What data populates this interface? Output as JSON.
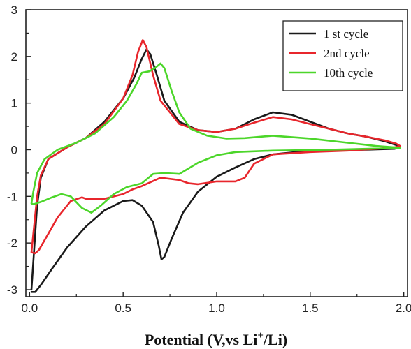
{
  "chart_data": {
    "type": "line",
    "title": "",
    "xlabel": "Potential (V,vs Li",
    "xlabel_sup": "+",
    "xlabel_tail": "/Li)",
    "ylabel": "",
    "xlim": [
      -0.02,
      2.02
    ],
    "ylim": [
      -3.15,
      3.0
    ],
    "x_ticks": [
      0.0,
      0.5,
      1.0,
      1.5,
      2.0
    ],
    "x_tick_labels": [
      "0.0",
      "0.5",
      "1.0",
      "1.5",
      "2.0"
    ],
    "y_ticks": [
      -3,
      -2,
      -1,
      0,
      1,
      2,
      3
    ],
    "y_tick_labels": [
      "-3",
      "-2",
      "-1",
      "0",
      "1",
      "2",
      "3"
    ],
    "grid": false,
    "legend_position": "top-right",
    "series": [
      {
        "name": "1 st cycle",
        "color": "#1a1a1a",
        "points": [
          [
            0.01,
            -3.0
          ],
          [
            0.02,
            -2.4
          ],
          [
            0.04,
            -1.2
          ],
          [
            0.06,
            -0.6
          ],
          [
            0.1,
            -0.2
          ],
          [
            0.2,
            0.05
          ],
          [
            0.3,
            0.25
          ],
          [
            0.4,
            0.6
          ],
          [
            0.5,
            1.1
          ],
          [
            0.56,
            1.55
          ],
          [
            0.6,
            1.95
          ],
          [
            0.625,
            2.15
          ],
          [
            0.645,
            2.05
          ],
          [
            0.68,
            1.6
          ],
          [
            0.72,
            1.05
          ],
          [
            0.8,
            0.6
          ],
          [
            0.9,
            0.42
          ],
          [
            1.0,
            0.38
          ],
          [
            1.1,
            0.45
          ],
          [
            1.2,
            0.65
          ],
          [
            1.3,
            0.8
          ],
          [
            1.4,
            0.75
          ],
          [
            1.5,
            0.6
          ],
          [
            1.6,
            0.45
          ],
          [
            1.7,
            0.35
          ],
          [
            1.8,
            0.28
          ],
          [
            1.9,
            0.18
          ],
          [
            1.96,
            0.1
          ],
          [
            1.98,
            0.05
          ],
          [
            1.95,
            0.02
          ],
          [
            1.8,
            0.0
          ],
          [
            1.5,
            -0.02
          ],
          [
            1.3,
            -0.1
          ],
          [
            1.2,
            -0.2
          ],
          [
            1.1,
            -0.38
          ],
          [
            1.0,
            -0.58
          ],
          [
            0.9,
            -0.9
          ],
          [
            0.82,
            -1.35
          ],
          [
            0.76,
            -1.9
          ],
          [
            0.72,
            -2.3
          ],
          [
            0.705,
            -2.35
          ],
          [
            0.69,
            -2.05
          ],
          [
            0.66,
            -1.55
          ],
          [
            0.6,
            -1.2
          ],
          [
            0.55,
            -1.08
          ],
          [
            0.5,
            -1.1
          ],
          [
            0.4,
            -1.3
          ],
          [
            0.3,
            -1.65
          ],
          [
            0.2,
            -2.1
          ],
          [
            0.12,
            -2.55
          ],
          [
            0.06,
            -2.9
          ],
          [
            0.03,
            -3.05
          ],
          [
            0.01,
            -3.05
          ]
        ]
      },
      {
        "name": "2nd cycle",
        "color": "#e8262c",
        "points": [
          [
            0.01,
            -2.2
          ],
          [
            0.02,
            -1.8
          ],
          [
            0.04,
            -1.0
          ],
          [
            0.06,
            -0.55
          ],
          [
            0.1,
            -0.2
          ],
          [
            0.2,
            0.05
          ],
          [
            0.3,
            0.25
          ],
          [
            0.4,
            0.55
          ],
          [
            0.5,
            1.1
          ],
          [
            0.55,
            1.6
          ],
          [
            0.58,
            2.1
          ],
          [
            0.605,
            2.35
          ],
          [
            0.625,
            2.2
          ],
          [
            0.66,
            1.6
          ],
          [
            0.7,
            1.05
          ],
          [
            0.8,
            0.55
          ],
          [
            0.9,
            0.42
          ],
          [
            1.0,
            0.38
          ],
          [
            1.1,
            0.45
          ],
          [
            1.2,
            0.58
          ],
          [
            1.3,
            0.7
          ],
          [
            1.4,
            0.65
          ],
          [
            1.5,
            0.55
          ],
          [
            1.6,
            0.45
          ],
          [
            1.7,
            0.35
          ],
          [
            1.8,
            0.28
          ],
          [
            1.9,
            0.2
          ],
          [
            1.96,
            0.13
          ],
          [
            1.98,
            0.08
          ],
          [
            1.95,
            0.05
          ],
          [
            1.85,
            0.02
          ],
          [
            1.7,
            -0.02
          ],
          [
            1.5,
            -0.05
          ],
          [
            1.3,
            -0.1
          ],
          [
            1.2,
            -0.3
          ],
          [
            1.15,
            -0.6
          ],
          [
            1.1,
            -0.68
          ],
          [
            1.0,
            -0.68
          ],
          [
            0.9,
            -0.74
          ],
          [
            0.85,
            -0.72
          ],
          [
            0.8,
            -0.65
          ],
          [
            0.7,
            -0.6
          ],
          [
            0.6,
            -0.78
          ],
          [
            0.55,
            -0.85
          ],
          [
            0.5,
            -0.95
          ],
          [
            0.4,
            -1.05
          ],
          [
            0.3,
            -1.05
          ],
          [
            0.28,
            -1.02
          ],
          [
            0.22,
            -1.1
          ],
          [
            0.15,
            -1.45
          ],
          [
            0.1,
            -1.8
          ],
          [
            0.05,
            -2.15
          ],
          [
            0.03,
            -2.22
          ],
          [
            0.01,
            -2.2
          ]
        ]
      },
      {
        "name": "10th cycle",
        "color": "#4cd62a",
        "points": [
          [
            0.01,
            -1.15
          ],
          [
            0.02,
            -0.9
          ],
          [
            0.04,
            -0.5
          ],
          [
            0.08,
            -0.2
          ],
          [
            0.15,
            0.0
          ],
          [
            0.25,
            0.15
          ],
          [
            0.35,
            0.35
          ],
          [
            0.45,
            0.7
          ],
          [
            0.52,
            1.05
          ],
          [
            0.57,
            1.4
          ],
          [
            0.6,
            1.65
          ],
          [
            0.64,
            1.68
          ],
          [
            0.67,
            1.75
          ],
          [
            0.7,
            1.85
          ],
          [
            0.72,
            1.75
          ],
          [
            0.76,
            1.25
          ],
          [
            0.8,
            0.8
          ],
          [
            0.86,
            0.45
          ],
          [
            0.95,
            0.3
          ],
          [
            1.05,
            0.24
          ],
          [
            1.15,
            0.25
          ],
          [
            1.3,
            0.3
          ],
          [
            1.5,
            0.24
          ],
          [
            1.7,
            0.15
          ],
          [
            1.85,
            0.08
          ],
          [
            1.95,
            0.05
          ],
          [
            1.98,
            0.04
          ],
          [
            1.9,
            0.03
          ],
          [
            1.6,
            0.0
          ],
          [
            1.3,
            -0.02
          ],
          [
            1.1,
            -0.05
          ],
          [
            1.0,
            -0.12
          ],
          [
            0.9,
            -0.28
          ],
          [
            0.8,
            -0.52
          ],
          [
            0.72,
            -0.5
          ],
          [
            0.66,
            -0.52
          ],
          [
            0.6,
            -0.72
          ],
          [
            0.52,
            -0.8
          ],
          [
            0.45,
            -0.95
          ],
          [
            0.38,
            -1.2
          ],
          [
            0.33,
            -1.35
          ],
          [
            0.28,
            -1.25
          ],
          [
            0.22,
            -1.0
          ],
          [
            0.17,
            -0.95
          ],
          [
            0.12,
            -1.02
          ],
          [
            0.06,
            -1.12
          ],
          [
            0.02,
            -1.17
          ],
          [
            0.01,
            -1.15
          ]
        ]
      }
    ]
  }
}
